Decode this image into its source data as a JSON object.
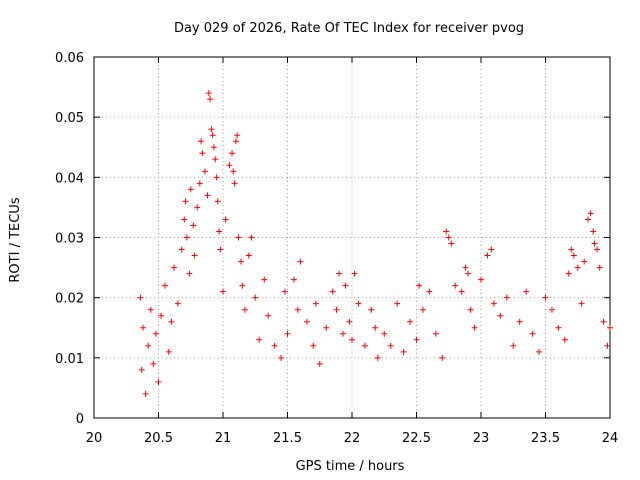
{
  "chart_data": {
    "type": "scatter",
    "title": "Day 029 of 2026, Rate Of TEC Index for receiver pvog",
    "xlabel": "GPS time / hours",
    "ylabel": "ROTI / TECUs",
    "xlim": [
      20,
      24
    ],
    "ylim": [
      0,
      0.06
    ],
    "x_ticks": [
      20,
      20.5,
      21,
      21.5,
      22,
      22.5,
      23,
      23.5,
      24
    ],
    "x_tick_labels": [
      "20",
      "20.5",
      "21",
      "21.5",
      "22",
      "22.5",
      "23",
      "23.5",
      "24"
    ],
    "y_ticks": [
      0,
      0.01,
      0.02,
      0.03,
      0.04,
      0.05,
      0.06
    ],
    "y_tick_labels": [
      "0",
      "0.01",
      "0.02",
      "0.03",
      "0.04",
      "0.05",
      "0.06"
    ],
    "grid": true,
    "marker": "+",
    "marker_color": "#ff0000",
    "series": [
      {
        "name": "ROTI",
        "x": [
          20.36,
          20.37,
          20.38,
          20.4,
          20.42,
          20.44,
          20.46,
          20.48,
          20.5,
          20.52,
          20.55,
          20.58,
          20.6,
          20.62,
          20.65,
          20.68,
          20.7,
          20.71,
          20.72,
          20.74,
          20.75,
          20.77,
          20.78,
          20.8,
          20.82,
          20.83,
          20.84,
          20.86,
          20.88,
          20.89,
          20.9,
          20.91,
          20.92,
          20.93,
          20.94,
          20.95,
          20.96,
          20.97,
          20.98,
          21.0,
          21.02,
          21.05,
          21.07,
          21.08,
          21.09,
          21.1,
          21.11,
          21.12,
          21.14,
          21.15,
          21.17,
          21.2,
          21.22,
          21.25,
          21.28,
          21.32,
          21.35,
          21.4,
          21.45,
          21.48,
          21.5,
          21.55,
          21.58,
          21.6,
          21.65,
          21.7,
          21.72,
          21.75,
          21.8,
          21.85,
          21.88,
          21.9,
          21.93,
          21.95,
          21.98,
          22.0,
          22.02,
          22.05,
          22.1,
          22.15,
          22.18,
          22.2,
          22.25,
          22.3,
          22.35,
          22.4,
          22.45,
          22.5,
          22.52,
          22.55,
          22.6,
          22.65,
          22.7,
          22.73,
          22.75,
          22.77,
          22.8,
          22.85,
          22.88,
          22.9,
          22.92,
          22.95,
          23.0,
          23.05,
          23.08,
          23.1,
          23.15,
          23.2,
          23.25,
          23.3,
          23.35,
          23.4,
          23.45,
          23.5,
          23.55,
          23.6,
          23.65,
          23.68,
          23.7,
          23.72,
          23.75,
          23.78,
          23.8,
          23.83,
          23.85,
          23.87,
          23.88,
          23.9,
          23.92,
          23.95,
          23.98,
          24.0
        ],
        "y": [
          0.02,
          0.008,
          0.015,
          0.004,
          0.012,
          0.018,
          0.009,
          0.014,
          0.006,
          0.017,
          0.022,
          0.011,
          0.016,
          0.025,
          0.019,
          0.028,
          0.033,
          0.036,
          0.03,
          0.024,
          0.038,
          0.032,
          0.027,
          0.035,
          0.039,
          0.046,
          0.044,
          0.041,
          0.037,
          0.054,
          0.053,
          0.048,
          0.047,
          0.045,
          0.043,
          0.04,
          0.036,
          0.031,
          0.028,
          0.021,
          0.033,
          0.042,
          0.044,
          0.041,
          0.039,
          0.046,
          0.047,
          0.03,
          0.026,
          0.022,
          0.018,
          0.027,
          0.03,
          0.02,
          0.013,
          0.023,
          0.017,
          0.012,
          0.01,
          0.021,
          0.014,
          0.023,
          0.018,
          0.026,
          0.016,
          0.012,
          0.019,
          0.009,
          0.015,
          0.021,
          0.018,
          0.024,
          0.014,
          0.022,
          0.016,
          0.013,
          0.024,
          0.019,
          0.012,
          0.018,
          0.015,
          0.01,
          0.014,
          0.012,
          0.019,
          0.011,
          0.016,
          0.013,
          0.022,
          0.018,
          0.021,
          0.014,
          0.01,
          0.031,
          0.03,
          0.029,
          0.022,
          0.021,
          0.025,
          0.024,
          0.018,
          0.015,
          0.023,
          0.027,
          0.028,
          0.019,
          0.017,
          0.02,
          0.012,
          0.016,
          0.021,
          0.014,
          0.011,
          0.02,
          0.018,
          0.015,
          0.013,
          0.024,
          0.028,
          0.027,
          0.025,
          0.019,
          0.026,
          0.033,
          0.034,
          0.031,
          0.029,
          0.028,
          0.025,
          0.016,
          0.012,
          0.015
        ]
      }
    ]
  }
}
